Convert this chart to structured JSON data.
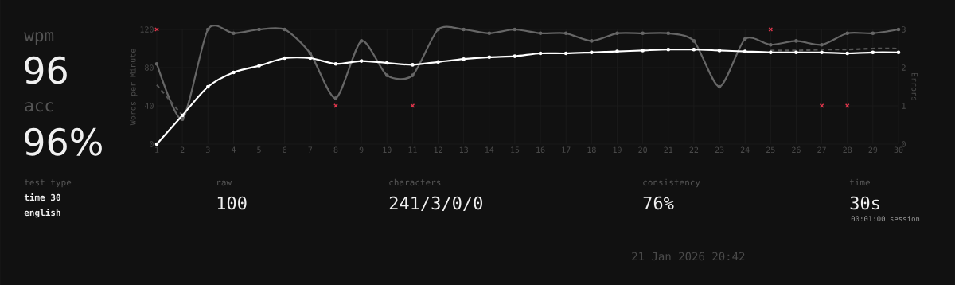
{
  "chart_data": {
    "type": "line",
    "ylabel": "Words per Minute",
    "y2label": "Errors",
    "x": [
      1,
      2,
      3,
      4,
      5,
      6,
      7,
      8,
      9,
      10,
      11,
      12,
      13,
      14,
      15,
      16,
      17,
      18,
      19,
      20,
      21,
      22,
      23,
      24,
      25,
      26,
      27,
      28,
      29,
      30
    ],
    "xlim": [
      1,
      30
    ],
    "xticks": [
      1,
      2,
      3,
      4,
      5,
      6,
      7,
      8,
      9,
      10,
      11,
      12,
      13,
      14,
      15,
      16,
      17,
      18,
      19,
      20,
      21,
      22,
      23,
      24,
      25,
      26,
      27,
      28,
      29,
      30
    ],
    "ylim": [
      0,
      120
    ],
    "yticks": [
      0,
      40,
      80,
      120
    ],
    "y2lim": [
      0,
      3
    ],
    "y2ticks": [
      0,
      1,
      2,
      3
    ],
    "grid": true,
    "marker": "circle",
    "line_style": "solid",
    "series": [
      {
        "color": "#666666",
        "values": [
          84,
          26,
          120,
          116,
          120,
          120,
          95,
          48,
          108,
          72,
          72,
          120,
          120,
          116,
          120,
          116,
          116,
          108,
          116,
          116,
          116,
          108,
          60,
          110,
          104,
          108,
          104,
          116,
          116,
          120
        ]
      },
      {
        "color": "#555555",
        "line_style": "dashed",
        "marker": "none",
        "values": [
          62,
          30,
          null,
          null,
          null,
          null,
          null,
          null,
          null,
          null,
          null,
          null,
          null,
          null,
          null,
          null,
          null,
          null,
          null,
          null,
          null,
          null,
          null,
          null,
          98,
          98,
          99,
          99,
          100,
          100
        ]
      },
      {
        "color": "#ffffff",
        "values": [
          0,
          30,
          60,
          75,
          82,
          90,
          90,
          84,
          87,
          85,
          83,
          86,
          89,
          91,
          92,
          95,
          95,
          96,
          97,
          98,
          99,
          99,
          98,
          97,
          96,
          96,
          96,
          95,
          96,
          96
        ]
      },
      {
        "type": "scatter",
        "axis": "y2",
        "marker": "cross",
        "color": "#e2374d",
        "x": [
          1,
          8,
          11,
          25,
          27,
          28
        ],
        "values": [
          3,
          1,
          1,
          3,
          1,
          1
        ]
      }
    ],
    "annotations": [
      "wpm",
      "96",
      "acc",
      "96%",
      "test type",
      "time 30",
      "english",
      "raw",
      "100",
      "characters",
      "241/3/0/0",
      "consistency",
      "76%",
      "time",
      "30s",
      "00:01:00 session",
      "21 Jan 2026 20:42"
    ]
  }
}
